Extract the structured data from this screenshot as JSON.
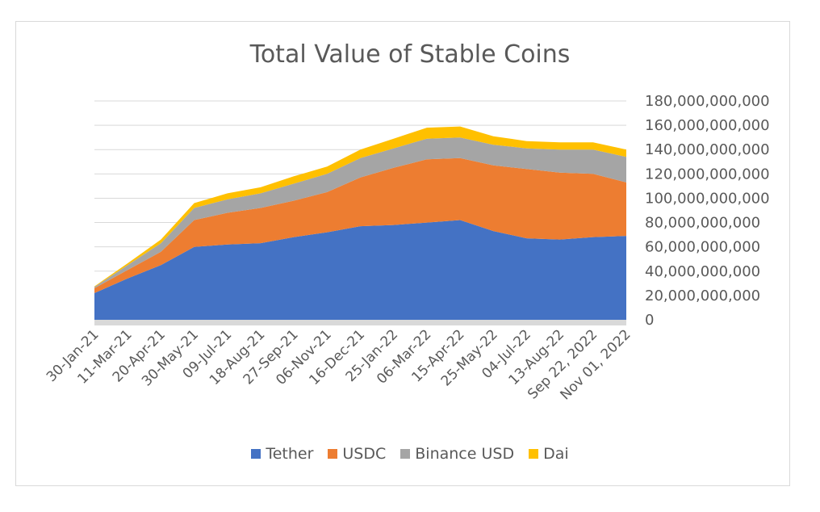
{
  "chart_data": {
    "type": "area",
    "stacked": true,
    "title": "Total Value of Stable Coins",
    "xlabel": "",
    "ylabel": "",
    "ylim": [
      0,
      180000000000
    ],
    "y_axis_position": "right",
    "y_ticks": [
      "0",
      "20,000,000,000",
      "40,000,000,000",
      "60,000,000,000",
      "80,000,000,000",
      "100,000,000,000",
      "120,000,000,000",
      "140,000,000,000",
      "160,000,000,000",
      "180,000,000,000"
    ],
    "x_tick_labels": [
      "30-Jan-21",
      "11-Mar-21",
      "20-Apr-21",
      "30-May-21",
      "09-Jul-21",
      "18-Aug-21",
      "27-Sep-21",
      "06-Nov-21",
      "16-Dec-21",
      "25-Jan-22",
      "06-Mar-22",
      "15-Apr-22",
      "25-May-22",
      "04-Jul-22",
      "13-Aug-22",
      "Sep 22, 2022",
      "Nov 01, 2022"
    ],
    "grid": true,
    "legend_position": "bottom",
    "x": [
      "30-Jan-21",
      "11-Mar-21",
      "20-Apr-21",
      "30-May-21",
      "09-Jul-21",
      "18-Aug-21",
      "27-Sep-21",
      "06-Nov-21",
      "16-Dec-21",
      "25-Jan-22",
      "06-Mar-22",
      "15-Apr-22",
      "25-May-22",
      "04-Jul-22",
      "13-Aug-22",
      "Sep 22, 2022",
      "Nov 01, 2022"
    ],
    "series": [
      {
        "name": "Tether",
        "color": "#4472C4",
        "values": [
          22000000000,
          34000000000,
          45000000000,
          60000000000,
          62000000000,
          63000000000,
          68000000000,
          72000000000,
          77000000000,
          78000000000,
          80000000000,
          82000000000,
          73000000000,
          67000000000,
          66000000000,
          68000000000,
          69000000000
        ]
      },
      {
        "name": "USDC",
        "color": "#ED7D31",
        "values": [
          4000000000,
          7000000000,
          11000000000,
          22000000000,
          26000000000,
          29000000000,
          30000000000,
          33000000000,
          40000000000,
          47000000000,
          52000000000,
          51000000000,
          54000000000,
          57000000000,
          55000000000,
          52000000000,
          44000000000
        ]
      },
      {
        "name": "Binance USD",
        "color": "#A5A5A5",
        "values": [
          1000000000,
          4000000000,
          7000000000,
          10000000000,
          11000000000,
          12000000000,
          14000000000,
          15000000000,
          16000000000,
          16000000000,
          17000000000,
          17000000000,
          17000000000,
          17000000000,
          19000000000,
          20000000000,
          21000000000
        ]
      },
      {
        "name": "Dai",
        "color": "#FFC000",
        "values": [
          500000000,
          1500000000,
          3000000000,
          4000000000,
          5000000000,
          5000000000,
          6000000000,
          6000000000,
          7000000000,
          8000000000,
          9000000000,
          9000000000,
          7000000000,
          6000000000,
          6000000000,
          6000000000,
          6000000000
        ]
      }
    ]
  }
}
